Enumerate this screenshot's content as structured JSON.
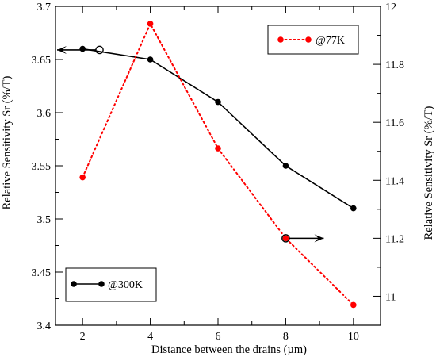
{
  "chart_data": {
    "type": "line",
    "xlabel": "Distance between the drains (µm)",
    "ylabel_left": "Relative Sensitivity Sr (%/T)",
    "ylabel_right": "Relative Sensitivity Sr (%/T)",
    "xlim": [
      1.2,
      10.8
    ],
    "ylim_left": [
      3.4,
      3.7
    ],
    "ylim_right": [
      10.9,
      12.0
    ],
    "x_ticks": [
      2,
      4,
      6,
      8,
      10
    ],
    "y_ticks_left": [
      3.4,
      3.45,
      3.5,
      3.55,
      3.6,
      3.65,
      3.7
    ],
    "y_ticks_right": [
      11,
      11.2,
      11.4,
      11.6,
      11.8,
      12
    ],
    "x_tick_labels": [
      "2",
      "4",
      "6",
      "8",
      "10"
    ],
    "y_tick_labels_left": [
      "3.4",
      "3.45",
      "3.5",
      "3.55",
      "3.6",
      "3.65",
      "3.7"
    ],
    "y_tick_labels_right": [
      "11",
      "11.2",
      "11.4",
      "11.6",
      "11.8",
      "12"
    ],
    "grid": false,
    "series": [
      {
        "name": "@300K",
        "axis": "left",
        "color": "#000000",
        "line_style": "solid",
        "marker": "filled-circle",
        "x": [
          2,
          4,
          6,
          8,
          10
        ],
        "y": [
          3.66,
          3.65,
          3.61,
          3.55,
          3.51
        ]
      },
      {
        "name": "@77K",
        "axis": "right",
        "color": "#ff0000",
        "line_style": "dotted",
        "marker": "filled-circle",
        "x": [
          2,
          4,
          6,
          8,
          10
        ],
        "y": [
          11.41,
          11.94,
          11.51,
          11.2,
          10.97
        ]
      }
    ],
    "legend": [
      {
        "label": "@77K",
        "placement": "top-right",
        "color": "#ff0000"
      },
      {
        "label": "@300K",
        "placement": "bottom-left",
        "color": "#000000"
      }
    ],
    "annotations": [
      {
        "kind": "open-circle-arrow",
        "series": "@300K",
        "x": 2.5,
        "y": 3.659,
        "direction": "left",
        "meaning": "left axis"
      },
      {
        "kind": "open-circle-arrow",
        "series": "@77K",
        "x": 8,
        "y": 11.2,
        "direction": "right",
        "meaning": "right axis"
      }
    ]
  }
}
